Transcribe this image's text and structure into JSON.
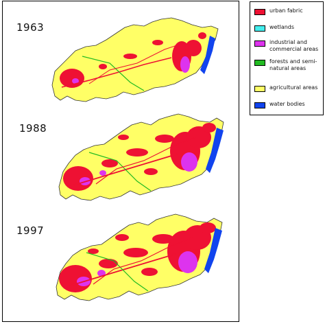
{
  "maps": [
    {
      "year": "1963"
    },
    {
      "year": "1988"
    },
    {
      "year": "1997"
    }
  ],
  "legend": {
    "items": [
      {
        "label": "urban fabric",
        "color": "#ee1133"
      },
      {
        "label": "wetlands",
        "color": "#44eeee"
      },
      {
        "label": "industrial and commercial areas",
        "color": "#dd33ee"
      },
      {
        "label": "forests and semi-natural areas",
        "color": "#22bb22"
      },
      {
        "label": "agricultural areas",
        "color": "#ffff66"
      },
      {
        "label": "water bodies",
        "color": "#1144ee"
      }
    ]
  }
}
